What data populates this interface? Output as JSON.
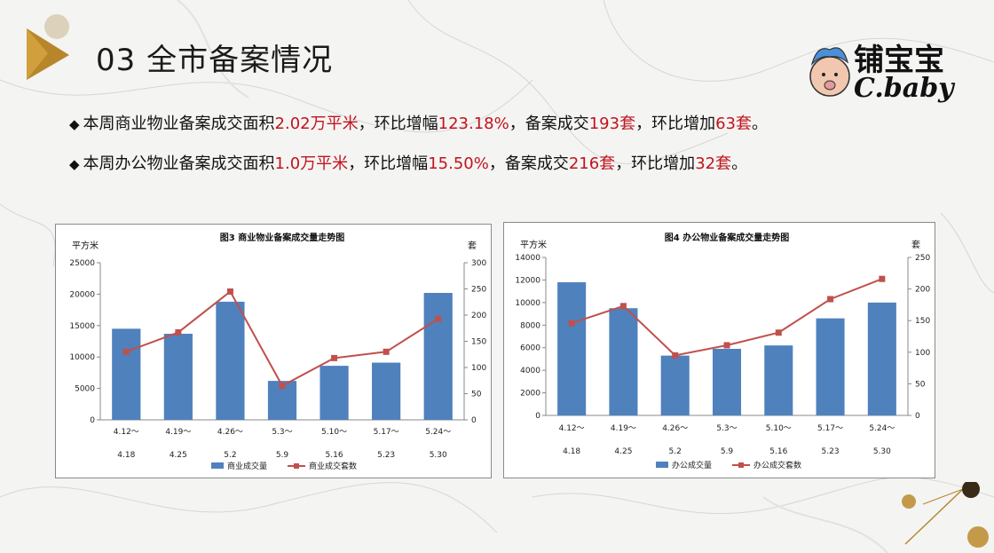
{
  "header": {
    "title": "03 全市备案情况"
  },
  "brand": {
    "name_cn": "铺宝宝",
    "name_en": "C.baby"
  },
  "bullets": [
    {
      "p1": "本周商业物业备案成交面积",
      "h1": "2.02万平米",
      "p2": "，环比增幅",
      "h2": "123.18%",
      "p3": "，备案成交",
      "h3": "193套",
      "p4": "，环比增加",
      "h4": "63套",
      "p5": "。"
    },
    {
      "p1": "本周办公物业备案成交面积",
      "h1": "1.0万平米",
      "p2": "，环比增幅",
      "h2": "15.50%",
      "p3": "，备案成交",
      "h3": "216套",
      "p4": "，环比增加",
      "h4": "32套",
      "p5": "。"
    }
  ],
  "chart_data": [
    {
      "type": "bar",
      "title": "图3  商业物业备案成交量走势图",
      "y1_unit": "平方米",
      "y2_unit": "套",
      "categories": [
        [
          "4.12～",
          "4.18"
        ],
        [
          "4.19～",
          "4.25"
        ],
        [
          "4.26～",
          "5.2"
        ],
        [
          "5.3～",
          "5.9"
        ],
        [
          "5.10～",
          "5.16"
        ],
        [
          "5.17～",
          "5.23"
        ],
        [
          "5.24～",
          "5.30"
        ]
      ],
      "ylim": [
        0,
        25000
      ],
      "yticks": [
        0,
        5000,
        10000,
        15000,
        20000,
        25000
      ],
      "y2lim": [
        0,
        300
      ],
      "y2ticks": [
        0,
        50,
        100,
        150,
        200,
        250,
        300
      ],
      "series": [
        {
          "name": "商业成交量",
          "type": "bar",
          "axis": "y1",
          "color": "#4f81bd",
          "values": [
            14500,
            13700,
            18800,
            6200,
            8600,
            9100,
            20200
          ]
        },
        {
          "name": "商业成交套数",
          "type": "line",
          "axis": "y2",
          "color": "#c0504d",
          "values": [
            130,
            167,
            245,
            65,
            118,
            130,
            193
          ]
        }
      ],
      "grid": false,
      "legend": "bottom"
    },
    {
      "type": "bar",
      "title": "图4  办公物业备案成交量走势图",
      "y1_unit": "平方米",
      "y2_unit": "套",
      "categories": [
        [
          "4.12～",
          "4.18"
        ],
        [
          "4.19～",
          "4.25"
        ],
        [
          "4.26～",
          "5.2"
        ],
        [
          "5.3～",
          "5.9"
        ],
        [
          "5.10～",
          "5.16"
        ],
        [
          "5.17～",
          "5.23"
        ],
        [
          "5.24～",
          "5.30"
        ]
      ],
      "ylim": [
        0,
        14000
      ],
      "yticks": [
        0,
        2000,
        4000,
        6000,
        8000,
        10000,
        12000,
        14000
      ],
      "y2lim": [
        0,
        250
      ],
      "y2ticks": [
        0,
        50,
        100,
        150,
        200,
        250
      ],
      "series": [
        {
          "name": "办公成交量",
          "type": "bar",
          "axis": "y1",
          "color": "#4f81bd",
          "values": [
            11800,
            9500,
            5300,
            5900,
            6200,
            8600,
            10000
          ]
        },
        {
          "name": "办公成交套数",
          "type": "line",
          "axis": "y2",
          "color": "#c0504d",
          "values": [
            146,
            173,
            95,
            111,
            131,
            184,
            216
          ]
        }
      ],
      "grid": false,
      "legend": "bottom"
    }
  ]
}
